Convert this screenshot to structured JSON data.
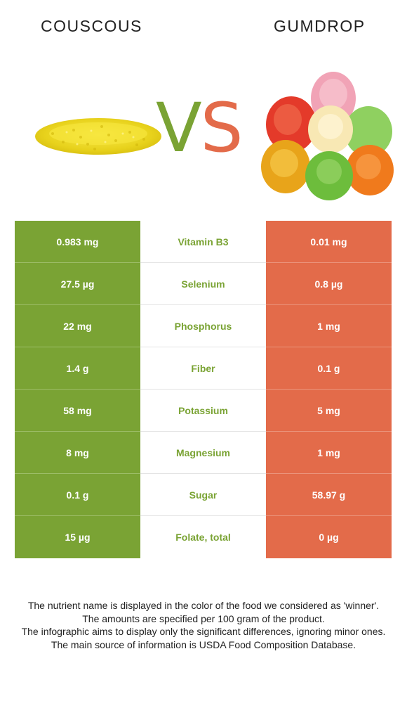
{
  "header": {
    "left_food": "COUSCOUS",
    "right_food": "GUMDROP",
    "vs_v": "V",
    "vs_s": "S"
  },
  "colors": {
    "winner_left": "#7aa334",
    "winner_right": "#e36b4a"
  },
  "rows": [
    {
      "left": "0.983 mg",
      "nutrient": "Vitamin B3",
      "right": "0.01 mg"
    },
    {
      "left": "27.5 µg",
      "nutrient": "Selenium",
      "right": "0.8 µg"
    },
    {
      "left": "22 mg",
      "nutrient": "Phosphorus",
      "right": "1 mg"
    },
    {
      "left": "1.4 g",
      "nutrient": "Fiber",
      "right": "0.1 g"
    },
    {
      "left": "58 mg",
      "nutrient": "Potassium",
      "right": "5 mg"
    },
    {
      "left": "8 mg",
      "nutrient": "Magnesium",
      "right": "1 mg"
    },
    {
      "left": "0.1 g",
      "nutrient": "Sugar",
      "right": "58.97 g"
    },
    {
      "left": "15 µg",
      "nutrient": "Folate, total",
      "right": "0 µg"
    }
  ],
  "footer": {
    "line1": "The nutrient name is displayed in the color of the food we considered as 'winner'.",
    "line2": "The amounts are specified per 100 gram of the product.",
    "line3": "The infographic aims to display only the significant differences, ignoring minor ones.",
    "line4": "The main source of information is USDA Food Composition Database."
  }
}
